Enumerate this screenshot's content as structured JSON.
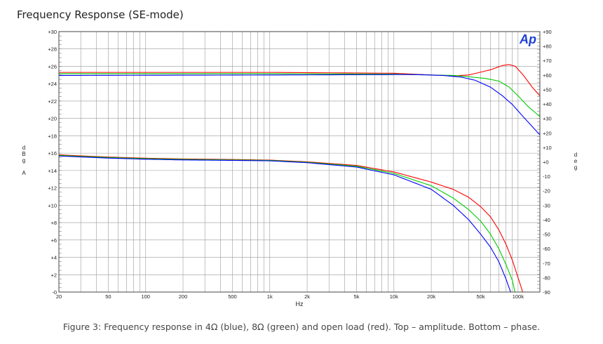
{
  "title": "Frequency Response (SE-mode)",
  "caption": "Figure 3: Frequency response in 4Ω (blue), 8Ω (green) and open load (red). Top – amplitude. Bottom – phase.",
  "logo_text": "Ap",
  "chart_data": {
    "type": "line",
    "title": "Frequency Response (SE-mode)",
    "xlabel": "Hz",
    "ylabel_left": "d B g A",
    "ylabel_right": "d e g",
    "x_scale": "log",
    "xlim": [
      20,
      150000
    ],
    "ylim_left": [
      0,
      30
    ],
    "ylim_right": [
      -90,
      90
    ],
    "grid": true,
    "x_ticks": [
      {
        "v": 20,
        "label": "20"
      },
      {
        "v": 50,
        "label": "50"
      },
      {
        "v": 100,
        "label": "100"
      },
      {
        "v": 200,
        "label": "200"
      },
      {
        "v": 500,
        "label": "500"
      },
      {
        "v": 1000,
        "label": "1k"
      },
      {
        "v": 2000,
        "label": "2k"
      },
      {
        "v": 5000,
        "label": "5k"
      },
      {
        "v": 10000,
        "label": "10k"
      },
      {
        "v": 20000,
        "label": "20k"
      },
      {
        "v": 50000,
        "label": "50k"
      },
      {
        "v": 100000,
        "label": "100k"
      }
    ],
    "y_left_ticks": [
      {
        "v": 30,
        "label": "+30"
      },
      {
        "v": 28,
        "label": "+28"
      },
      {
        "v": 26,
        "label": "+26"
      },
      {
        "v": 24,
        "label": "+24"
      },
      {
        "v": 22,
        "label": "+22"
      },
      {
        "v": 20,
        "label": "+20"
      },
      {
        "v": 18,
        "label": "+18"
      },
      {
        "v": 16,
        "label": "+16"
      },
      {
        "v": 14,
        "label": "+14"
      },
      {
        "v": 12,
        "label": "+12"
      },
      {
        "v": 10,
        "label": "+10"
      },
      {
        "v": 8,
        "label": "+8"
      },
      {
        "v": 6,
        "label": "+6"
      },
      {
        "v": 4,
        "label": "+4"
      },
      {
        "v": 2,
        "label": "+2"
      },
      {
        "v": 0,
        "label": "-0"
      }
    ],
    "y_right_ticks": [
      {
        "v": 90,
        "label": "+90"
      },
      {
        "v": 80,
        "label": "+80"
      },
      {
        "v": 70,
        "label": "+70"
      },
      {
        "v": 60,
        "label": "+60"
      },
      {
        "v": 50,
        "label": "+50"
      },
      {
        "v": 40,
        "label": "+40"
      },
      {
        "v": 30,
        "label": "+30"
      },
      {
        "v": 20,
        "label": "+20"
      },
      {
        "v": 10,
        "label": "+10"
      },
      {
        "v": 0,
        "label": "+0"
      },
      {
        "v": -10,
        "label": "-10"
      },
      {
        "v": -20,
        "label": "-20"
      },
      {
        "v": -30,
        "label": "-30"
      },
      {
        "v": -40,
        "label": "-40"
      },
      {
        "v": -50,
        "label": "-50"
      },
      {
        "v": -60,
        "label": "-60"
      },
      {
        "v": -70,
        "label": "-70"
      },
      {
        "v": -80,
        "label": "-80"
      },
      {
        "v": -90,
        "label": "-90"
      }
    ],
    "series": [
      {
        "group": "amplitude",
        "color": "#ff0000",
        "points": [
          [
            20,
            25.3
          ],
          [
            1000,
            25.3
          ],
          [
            10000,
            25.2
          ],
          [
            20000,
            25.0
          ],
          [
            30000,
            24.9
          ],
          [
            40000,
            25.0
          ],
          [
            60000,
            25.6
          ],
          [
            75000,
            26.1
          ],
          [
            85000,
            26.2
          ],
          [
            95000,
            26.0
          ],
          [
            110000,
            25.0
          ],
          [
            130000,
            23.6
          ],
          [
            150000,
            22.6
          ]
        ]
      },
      {
        "group": "amplitude",
        "color": "#00cc00",
        "points": [
          [
            20,
            25.15
          ],
          [
            1000,
            25.15
          ],
          [
            10000,
            25.1
          ],
          [
            20000,
            25.0
          ],
          [
            30000,
            24.95
          ],
          [
            40000,
            24.8
          ],
          [
            55000,
            24.6
          ],
          [
            70000,
            24.3
          ],
          [
            85000,
            23.6
          ],
          [
            100000,
            22.6
          ],
          [
            120000,
            21.4
          ],
          [
            150000,
            20.2
          ]
        ]
      },
      {
        "group": "amplitude",
        "color": "#0000ff",
        "points": [
          [
            20,
            24.95
          ],
          [
            1000,
            25.0
          ],
          [
            10000,
            25.05
          ],
          [
            15000,
            25.05
          ],
          [
            25000,
            24.95
          ],
          [
            35000,
            24.75
          ],
          [
            45000,
            24.4
          ],
          [
            60000,
            23.6
          ],
          [
            75000,
            22.6
          ],
          [
            90000,
            21.6
          ],
          [
            110000,
            20.2
          ],
          [
            150000,
            18.1
          ]
        ]
      },
      {
        "group": "phase",
        "color": "#ff0000",
        "points": [
          [
            20,
            4.8
          ],
          [
            50,
            3.3
          ],
          [
            100,
            2.5
          ],
          [
            200,
            2.0
          ],
          [
            500,
            1.6
          ],
          [
            1000,
            1.2
          ],
          [
            2000,
            0.0
          ],
          [
            5000,
            -2.5
          ],
          [
            10000,
            -7.0
          ],
          [
            20000,
            -14.0
          ],
          [
            30000,
            -19.0
          ],
          [
            40000,
            -24.5
          ],
          [
            50000,
            -31.0
          ],
          [
            60000,
            -38.0
          ],
          [
            70000,
            -47.0
          ],
          [
            80000,
            -57.0
          ],
          [
            90000,
            -68.0
          ],
          [
            100000,
            -80.0
          ],
          [
            110000,
            -91.0
          ]
        ]
      },
      {
        "group": "phase",
        "color": "#00cc00",
        "points": [
          [
            20,
            4.4
          ],
          [
            50,
            3.0
          ],
          [
            100,
            2.2
          ],
          [
            200,
            1.7
          ],
          [
            500,
            1.3
          ],
          [
            1000,
            1.0
          ],
          [
            2000,
            -0.3
          ],
          [
            5000,
            -3.0
          ],
          [
            10000,
            -8.0
          ],
          [
            20000,
            -16.5
          ],
          [
            30000,
            -25.0
          ],
          [
            40000,
            -33.0
          ],
          [
            50000,
            -41.0
          ],
          [
            60000,
            -50.0
          ],
          [
            70000,
            -60.0
          ],
          [
            80000,
            -71.0
          ],
          [
            90000,
            -82.0
          ],
          [
            95000,
            -91.0
          ]
        ]
      },
      {
        "group": "phase",
        "color": "#0000ff",
        "points": [
          [
            20,
            4.0
          ],
          [
            50,
            2.6
          ],
          [
            100,
            1.8
          ],
          [
            200,
            1.3
          ],
          [
            500,
            1.0
          ],
          [
            1000,
            0.7
          ],
          [
            2000,
            -0.6
          ],
          [
            5000,
            -3.6
          ],
          [
            10000,
            -9.0
          ],
          [
            20000,
            -19.0
          ],
          [
            30000,
            -30.0
          ],
          [
            40000,
            -40.0
          ],
          [
            50000,
            -50.0
          ],
          [
            60000,
            -59.0
          ],
          [
            70000,
            -69.0
          ],
          [
            80000,
            -81.0
          ],
          [
            88000,
            -91.0
          ]
        ]
      }
    ]
  }
}
